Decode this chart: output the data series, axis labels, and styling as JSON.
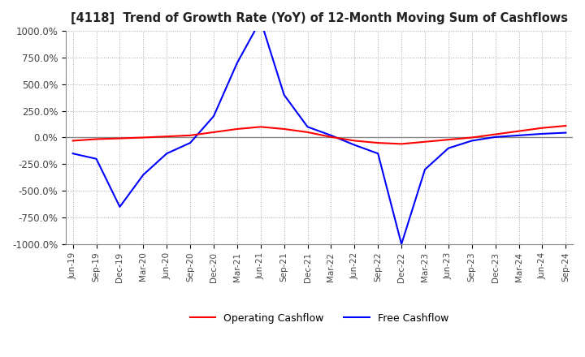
{
  "title": "[4118]  Trend of Growth Rate (YoY) of 12-Month Moving Sum of Cashflows",
  "ylim": [
    -1000,
    1000
  ],
  "yticks": [
    1000,
    750,
    500,
    250,
    0,
    -250,
    -500,
    -750,
    -1000
  ],
  "ytick_labels": [
    "1000.0%",
    "750.0%",
    "500.0%",
    "250.0%",
    "0.0%",
    "-250.0%",
    "-500.0%",
    "-750.0%",
    "-1000.0%"
  ],
  "background_color": "#ffffff",
  "grid_color": "#aaaaaa",
  "operating_color": "#ff0000",
  "free_color": "#0000ff",
  "x_labels": [
    "Jun-19",
    "Sep-19",
    "Dec-19",
    "Mar-20",
    "Jun-20",
    "Sep-20",
    "Dec-20",
    "Mar-21",
    "Jun-21",
    "Sep-21",
    "Dec-21",
    "Mar-22",
    "Jun-22",
    "Sep-22",
    "Dec-22",
    "Mar-23",
    "Jun-23",
    "Sep-23",
    "Dec-23",
    "Mar-24",
    "Jun-24",
    "Sep-24"
  ],
  "operating_cashflow": [
    -30,
    -15,
    -8,
    0,
    10,
    20,
    50,
    80,
    100,
    80,
    50,
    5,
    -30,
    -50,
    -60,
    -40,
    -20,
    0,
    30,
    60,
    90,
    110
  ],
  "free_cashflow": [
    -150,
    -200,
    -650,
    -350,
    -150,
    -50,
    200,
    700,
    1100,
    400,
    100,
    20,
    -70,
    -150,
    -1000,
    -300,
    -100,
    -30,
    5,
    20,
    35,
    45
  ]
}
